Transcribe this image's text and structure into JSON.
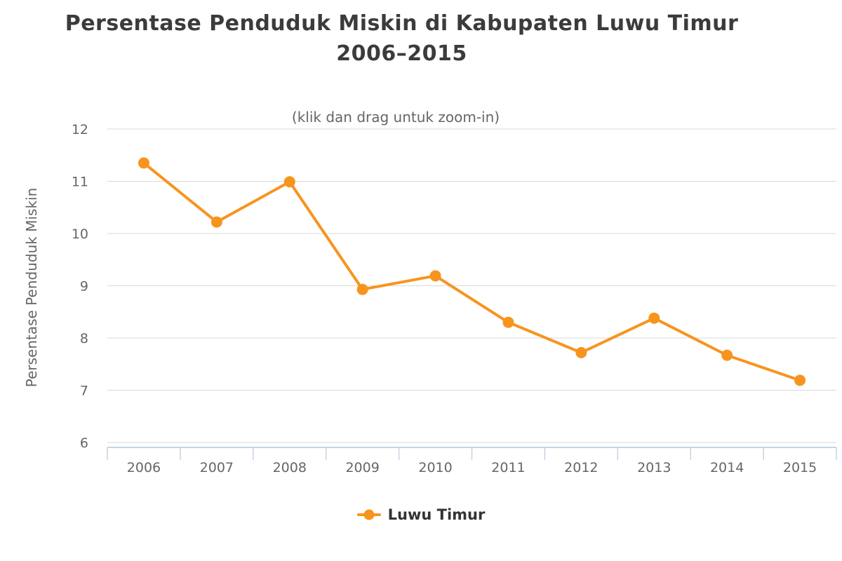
{
  "chart": {
    "title_line1": "Persentase Penduduk Miskin di Kabupaten Luwu Timur",
    "title_line2": "2006–2015",
    "subtitle": "(klik dan drag untuk zoom-in)",
    "y_axis_title": "Persentase Penduduk Miskin",
    "legend": {
      "label": "Luwu Timur",
      "marker": "line-dot"
    }
  },
  "chart_data": {
    "type": "line",
    "title": "Persentase Penduduk Miskin di Kabupaten Luwu Timur 2006–2015",
    "subtitle": "(klik dan drag untuk zoom-in)",
    "categories": [
      "2006",
      "2007",
      "2008",
      "2009",
      "2010",
      "2011",
      "2012",
      "2013",
      "2014",
      "2015"
    ],
    "series": [
      {
        "name": "Luwu Timur",
        "values": [
          11.35,
          10.22,
          10.99,
          8.93,
          9.19,
          8.3,
          7.72,
          8.38,
          7.67,
          7.19
        ],
        "color": "#F7941E"
      }
    ],
    "xlabel": "",
    "ylabel": "Persentase Penduduk Miskin",
    "ylim": [
      6,
      12
    ],
    "y_ticks": [
      6,
      7,
      8,
      9,
      10,
      11,
      12
    ],
    "grid": true,
    "legend_position": "bottom",
    "marker": "circle"
  },
  "colors": {
    "series": "#F7941E",
    "title": "#3B3B3B",
    "subtitle": "#666666",
    "axis_label": "#666666",
    "axis_line": "#C6D3E3",
    "gridline": "#D9D9D9",
    "legend_text": "#333333",
    "background": "#FFFFFF"
  }
}
